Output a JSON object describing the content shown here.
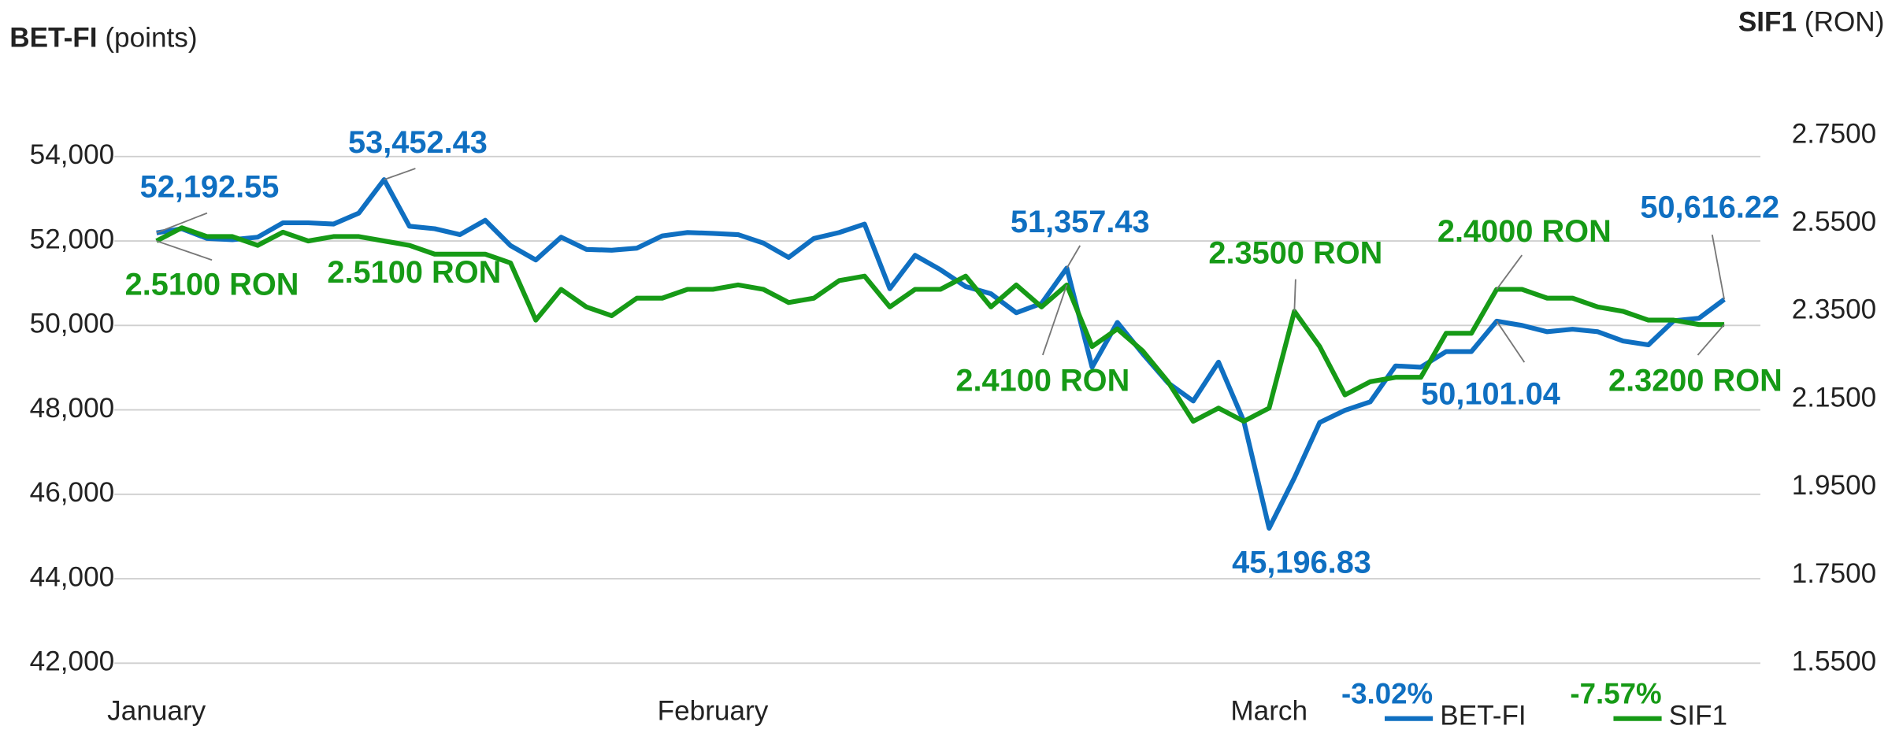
{
  "chart_data": {
    "type": "line",
    "ylabel": "BET-FI",
    "ylabel_unit": "(points)",
    "y2label": "SIF1",
    "y2label_unit": "(RON)",
    "categories": [
      "January",
      null,
      null,
      null,
      null,
      null,
      null,
      null,
      null,
      null,
      null,
      null,
      null,
      null,
      null,
      null,
      null,
      null,
      null,
      null,
      null,
      null,
      "February",
      null,
      null,
      null,
      null,
      null,
      null,
      null,
      null,
      null,
      null,
      null,
      null,
      null,
      null,
      null,
      null,
      null,
      null,
      null,
      null,
      null,
      "March",
      null,
      null,
      null,
      null,
      null,
      null,
      null,
      null,
      null,
      null,
      null,
      null,
      null,
      null,
      null,
      null,
      null,
      null
    ],
    "ylim": [
      42000,
      54500
    ],
    "yticks": [
      {
        "value": 42000,
        "label": "42,000"
      },
      {
        "value": 44000,
        "label": "44,000"
      },
      {
        "value": 46000,
        "label": "46,000"
      },
      {
        "value": 48000,
        "label": "48,000"
      },
      {
        "value": 50000,
        "label": "50,000"
      },
      {
        "value": 52000,
        "label": "52,000"
      },
      {
        "value": 54000,
        "label": "54,000"
      }
    ],
    "y2lim": [
      1.55,
      2.75
    ],
    "y2ticks": [
      {
        "value": 1.55,
        "label": "1.5500"
      },
      {
        "value": 1.75,
        "label": "1.7500"
      },
      {
        "value": 1.95,
        "label": "1.9500"
      },
      {
        "value": 2.15,
        "label": "2.1500"
      },
      {
        "value": 2.35,
        "label": "2.3500"
      },
      {
        "value": 2.55,
        "label": "2.5500"
      },
      {
        "value": 2.75,
        "label": "2.7500"
      }
    ],
    "grid": true,
    "series": [
      {
        "name": "BET-FI",
        "color": "#0f6fc1",
        "change": "-3.02%",
        "values": [
          52192.55,
          52290,
          52060,
          52030,
          52090,
          52430,
          52430,
          52400,
          52660,
          53452.43,
          52350,
          52290,
          52150,
          52490,
          51890,
          51550,
          52090,
          51800,
          51780,
          51830,
          52120,
          52200,
          52180,
          52150,
          51950,
          51610,
          52060,
          52200,
          52400,
          50870,
          51660,
          51320,
          50920,
          50750,
          50300,
          50520,
          51357.43,
          49010,
          50070,
          49330,
          48640,
          48210,
          49130,
          47730,
          45196.83,
          46390,
          47700,
          47990,
          48190,
          49040,
          49010,
          49380,
          49380,
          50101.04,
          50000,
          49850,
          49910,
          49850,
          49630,
          49540,
          50110,
          50170,
          50616.22
        ],
        "value_labels": [
          "52,192.55",
          null,
          null,
          null,
          null,
          null,
          null,
          null,
          null,
          "53,452.43",
          null,
          null,
          null,
          null,
          null,
          null,
          null,
          null,
          null,
          null,
          null,
          null,
          null,
          null,
          null,
          null,
          null,
          null,
          null,
          null,
          null,
          null,
          null,
          null,
          null,
          null,
          "51,357.43",
          null,
          null,
          null,
          null,
          null,
          null,
          null,
          "45,196.83",
          null,
          null,
          null,
          null,
          null,
          null,
          null,
          null,
          "50,101.04",
          null,
          null,
          null,
          null,
          null,
          null,
          null,
          null,
          "50,616.22"
        ]
      },
      {
        "name": "SIF1",
        "color": "#169a16",
        "change": "-7.57%",
        "axis": "y2",
        "values": [
          2.51,
          2.54,
          2.52,
          2.52,
          2.5,
          2.53,
          2.51,
          2.52,
          2.52,
          2.51,
          2.5,
          2.48,
          2.48,
          2.48,
          2.46,
          2.33,
          2.4,
          2.36,
          2.34,
          2.38,
          2.38,
          2.4,
          2.4,
          2.41,
          2.4,
          2.37,
          2.38,
          2.42,
          2.43,
          2.36,
          2.4,
          2.4,
          2.43,
          2.36,
          2.41,
          2.36,
          2.41,
          2.27,
          2.31,
          2.26,
          2.19,
          2.1,
          2.13,
          2.1,
          2.13,
          2.35,
          2.27,
          2.16,
          2.19,
          2.2,
          2.2,
          2.3,
          2.3,
          2.4,
          2.4,
          2.38,
          2.38,
          2.36,
          2.35,
          2.33,
          2.33,
          2.32,
          2.32
        ],
        "value_labels": [
          "2.5100 RON",
          null,
          null,
          null,
          null,
          null,
          "2.5100 RON",
          null,
          null,
          null,
          null,
          null,
          null,
          null,
          null,
          null,
          null,
          null,
          null,
          null,
          null,
          null,
          null,
          null,
          null,
          null,
          null,
          null,
          null,
          null,
          null,
          null,
          null,
          null,
          null,
          null,
          "2.4100 RON",
          null,
          null,
          null,
          null,
          null,
          null,
          null,
          null,
          "2.3500 RON",
          null,
          null,
          null,
          null,
          null,
          null,
          null,
          "2.4000 RON",
          null,
          null,
          null,
          null,
          null,
          null,
          null,
          null,
          "2.3200 RON"
        ]
      }
    ]
  }
}
